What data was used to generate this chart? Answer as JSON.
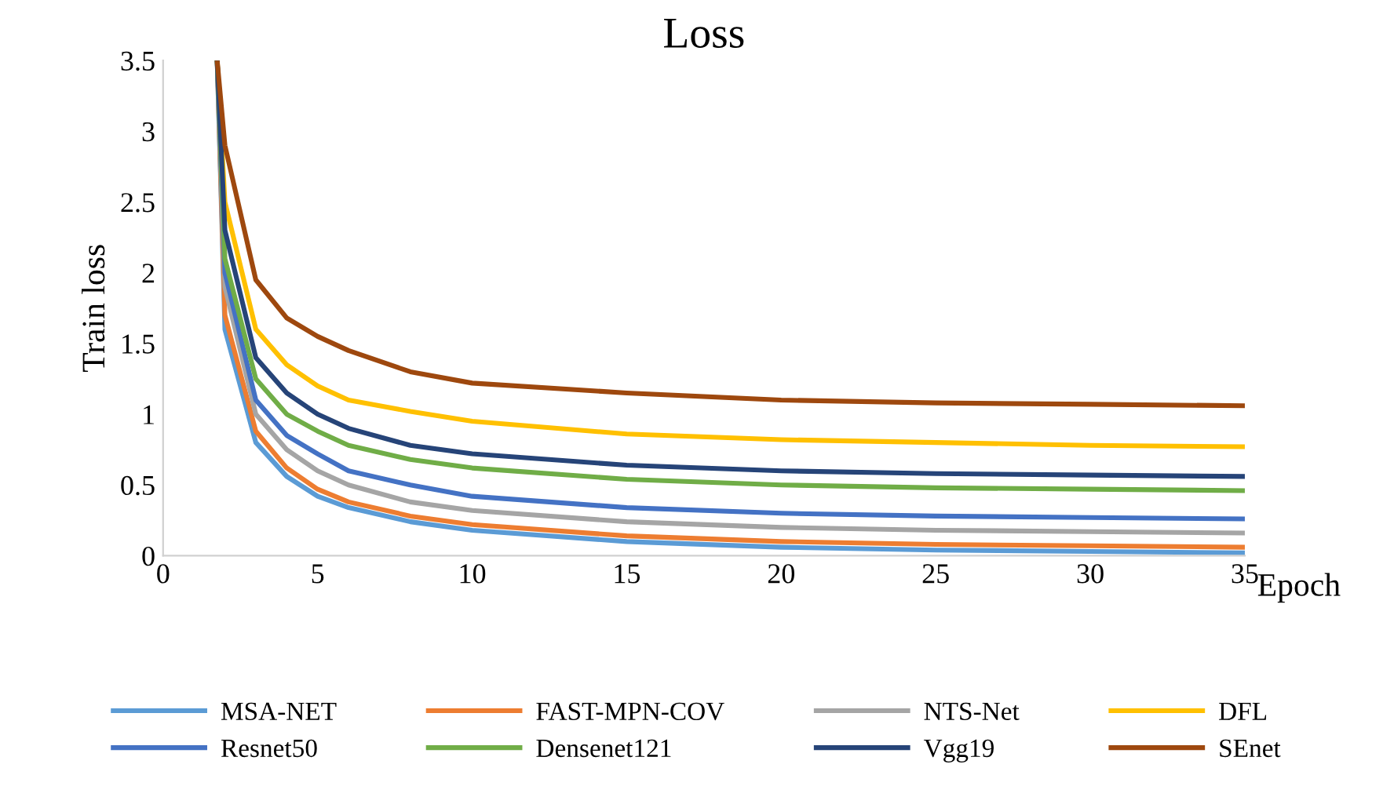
{
  "chart_data": {
    "type": "line",
    "title": "Loss",
    "xlabel": "Epoch",
    "ylabel": "Train loss",
    "x": [
      1.75,
      2,
      3,
      4,
      5,
      6,
      8,
      10,
      15,
      20,
      25,
      30,
      35
    ],
    "series": [
      {
        "name": "MSA-NET",
        "color": "#5b9bd5",
        "values": [
          3.5,
          1.6,
          0.8,
          0.56,
          0.42,
          0.34,
          0.24,
          0.18,
          0.1,
          0.06,
          0.04,
          0.03,
          0.02
        ]
      },
      {
        "name": "FAST-MPN-COV",
        "color": "#ed7d31",
        "values": [
          3.5,
          1.7,
          0.88,
          0.62,
          0.47,
          0.38,
          0.28,
          0.22,
          0.14,
          0.1,
          0.08,
          0.07,
          0.06
        ]
      },
      {
        "name": "NTS-Net",
        "color": "#a5a5a5",
        "values": [
          3.5,
          1.9,
          1.0,
          0.75,
          0.6,
          0.5,
          0.38,
          0.32,
          0.24,
          0.2,
          0.18,
          0.17,
          0.16
        ]
      },
      {
        "name": "DFL",
        "color": "#ffc000",
        "values": [
          3.5,
          2.5,
          1.6,
          1.35,
          1.2,
          1.1,
          1.02,
          0.95,
          0.86,
          0.82,
          0.8,
          0.78,
          0.77
        ]
      },
      {
        "name": "Resnet50",
        "color": "#4472c4",
        "values": [
          3.5,
          2.0,
          1.1,
          0.85,
          0.72,
          0.6,
          0.5,
          0.42,
          0.34,
          0.3,
          0.28,
          0.27,
          0.26
        ]
      },
      {
        "name": "Densenet121",
        "color": "#70ad47",
        "values": [
          3.5,
          2.1,
          1.25,
          1.0,
          0.88,
          0.78,
          0.68,
          0.62,
          0.54,
          0.5,
          0.48,
          0.47,
          0.46
        ]
      },
      {
        "name": "Vgg19",
        "color": "#264478",
        "values": [
          3.5,
          2.3,
          1.4,
          1.15,
          1.0,
          0.9,
          0.78,
          0.72,
          0.64,
          0.6,
          0.58,
          0.57,
          0.56
        ]
      },
      {
        "name": "SEnet",
        "color": "#9e480e",
        "values": [
          3.5,
          2.9,
          1.95,
          1.68,
          1.55,
          1.45,
          1.3,
          1.22,
          1.15,
          1.1,
          1.08,
          1.07,
          1.06
        ]
      }
    ],
    "xlim": [
      0,
      35
    ],
    "xticks": [
      0,
      5,
      10,
      15,
      20,
      25,
      30,
      35
    ],
    "ylim": [
      0,
      3.5
    ],
    "yticks": [
      0,
      0.5,
      1,
      1.5,
      2,
      2.5,
      3,
      3.5
    ],
    "grid": false,
    "legend": "bottom",
    "marker": "none",
    "line_style": "solid"
  }
}
